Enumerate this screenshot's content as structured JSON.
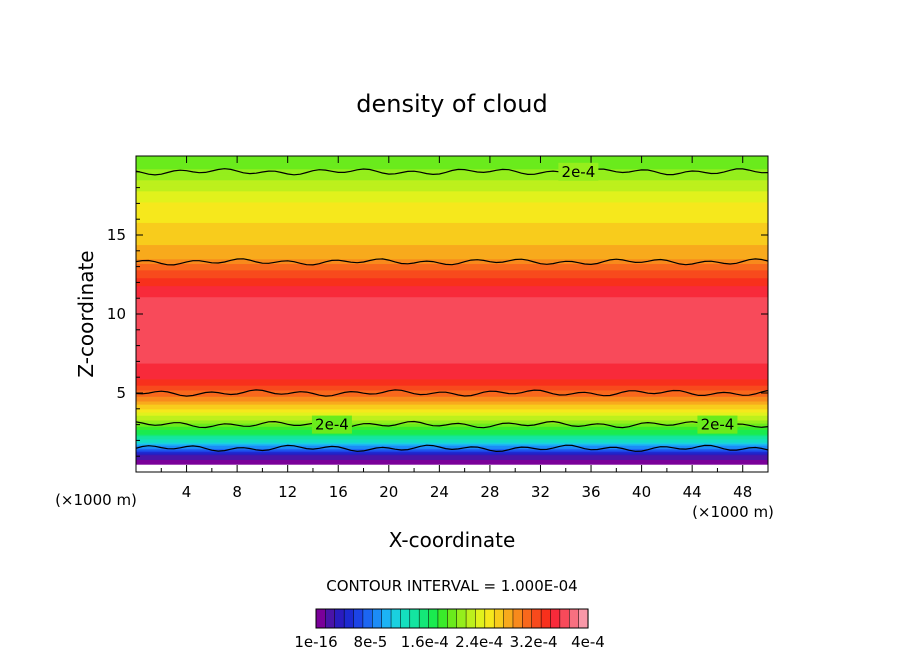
{
  "chart_data": {
    "type": "heatmap",
    "title": "density of cloud",
    "xlabel": "X-coordinate",
    "ylabel": "Z-coordinate",
    "x_unit": "(×1000 m)",
    "z_unit": "(×1000 m)",
    "xlim": [
      0,
      50
    ],
    "ylim": [
      0,
      20
    ],
    "x_ticks": [
      4,
      8,
      12,
      16,
      20,
      24,
      28,
      32,
      36,
      40,
      44,
      48
    ],
    "y_ticks": [
      5,
      10,
      15
    ],
    "contour_interval_label": "CONTOUR INTERVAL = 1.000E-04",
    "contour_levels": [
      {
        "z": 1.5,
        "label": ""
      },
      {
        "z": 3.0,
        "label": "2e-4",
        "label_x": [
          15.5,
          46.0
        ]
      },
      {
        "z": 5.0,
        "label": ""
      },
      {
        "z": 13.3,
        "label": ""
      },
      {
        "z": 19.0,
        "label": "2e-4",
        "label_x": [
          35.0
        ]
      }
    ],
    "profile_z": [
      0.5,
      1.0,
      1.5,
      2.0,
      2.5,
      3.0,
      3.5,
      4.0,
      4.5,
      5.0,
      5.5,
      6.0,
      7.0,
      8.0,
      9.0,
      10.0,
      11.0,
      12.0,
      13.0,
      13.5,
      14.0,
      15.0,
      16.0,
      17.0,
      18.0,
      19.0,
      19.5
    ],
    "profile_value": [
      0.0,
      2e-05,
      8e-05,
      0.00013,
      0.00017,
      0.0002,
      0.00023,
      0.00026,
      0.00029,
      0.00031,
      0.00033,
      0.00035,
      0.00036,
      0.00036,
      0.00037,
      0.00037,
      0.00036,
      0.00034,
      0.00031,
      0.00029,
      0.00028,
      0.00027,
      0.00026,
      0.00025,
      0.00023,
      0.00021,
      0.0002
    ],
    "colorbar": {
      "colors": [
        "#7a0099",
        "#4a14a8",
        "#2a1cbf",
        "#1c2ad1",
        "#1c44e6",
        "#1c66f2",
        "#1c8cf7",
        "#1cb3f5",
        "#1ad1e0",
        "#14dfbf",
        "#14e5a0",
        "#14e878",
        "#1aeb4f",
        "#3aeb2a",
        "#6aeb1c",
        "#95ee1c",
        "#bdf01c",
        "#e1f21c",
        "#f6e81c",
        "#f8cc1c",
        "#f8aa1c",
        "#f88a1c",
        "#f8681c",
        "#f84a1c",
        "#f8301c",
        "#f82a3a",
        "#f84a5a",
        "#f87080",
        "#f898a8"
      ],
      "tick_labels": [
        "1e-16",
        "8e-5",
        "1.6e-4",
        "2.4e-4",
        "3.2e-4",
        "4e-4"
      ]
    }
  }
}
